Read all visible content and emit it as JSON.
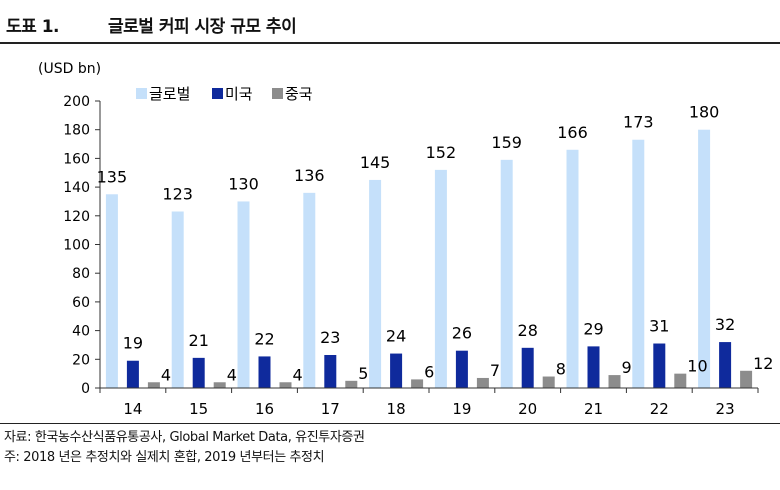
{
  "header": {
    "figure_label": "도표 1.",
    "title": "글로벌 커피 시장 규모 추이"
  },
  "notes": {
    "source": "자료: 한국농수산식품유통공사, Global Market Data, 유진투자증권",
    "note": "주: 2018 년은 추정치와 실제치 혼합, 2019 년부터는 추정치"
  },
  "colors": {
    "global": "#c5e0fa",
    "usa": "#0f2a9c",
    "china": "#8c8c8c"
  },
  "chart_data": {
    "type": "bar",
    "unit_label": "(USD bn)",
    "categories": [
      "14",
      "15",
      "16",
      "17",
      "18",
      "19",
      "20",
      "21",
      "22",
      "23"
    ],
    "series": [
      {
        "name": "글로벌",
        "values": [
          135,
          123,
          130,
          136,
          145,
          152,
          159,
          166,
          173,
          180
        ]
      },
      {
        "name": "미국",
        "values": [
          19,
          21,
          22,
          23,
          24,
          26,
          28,
          29,
          31,
          32
        ]
      },
      {
        "name": "중국",
        "values": [
          4,
          4,
          4,
          5,
          6,
          7,
          8,
          9,
          10,
          12
        ]
      }
    ],
    "ylim": [
      0,
      200
    ],
    "yticks": [
      "0",
      "20",
      "40",
      "60",
      "80",
      "100",
      "120",
      "140",
      "160",
      "180",
      "200"
    ],
    "legend_position": "top-left",
    "grid": false
  }
}
